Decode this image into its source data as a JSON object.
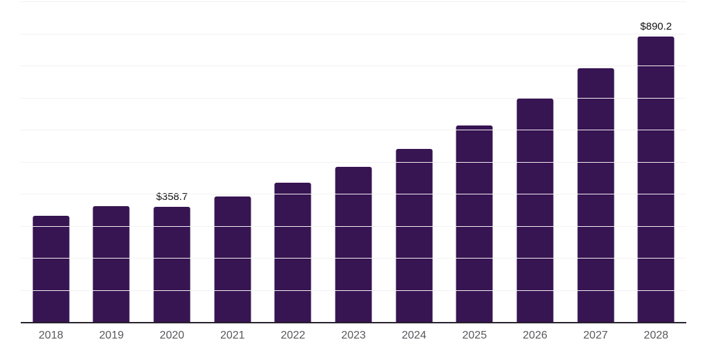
{
  "chart_data": {
    "type": "bar",
    "title": "",
    "xlabel": "",
    "ylabel": "",
    "categories": [
      "2018",
      "2019",
      "2020",
      "2021",
      "2022",
      "2023",
      "2024",
      "2025",
      "2026",
      "2027",
      "2028"
    ],
    "values": [
      332,
      361,
      358.7,
      392,
      434,
      484,
      539,
      612,
      697,
      792,
      890.2
    ],
    "data_labels": [
      "",
      "",
      "$358.7",
      "",
      "",
      "",
      "",
      "",
      "",
      "",
      "$890.2"
    ],
    "ylim": [
      0,
      1000
    ],
    "gridline_step": 100,
    "grid": "horizontal",
    "legend": "none",
    "bar_color": "#371452",
    "axis_color": "#26212c",
    "gridline_color": "#f2f2f4",
    "tick_label_color": "#57585c",
    "data_label_color": "#111111",
    "background_color": "#ffffff"
  }
}
